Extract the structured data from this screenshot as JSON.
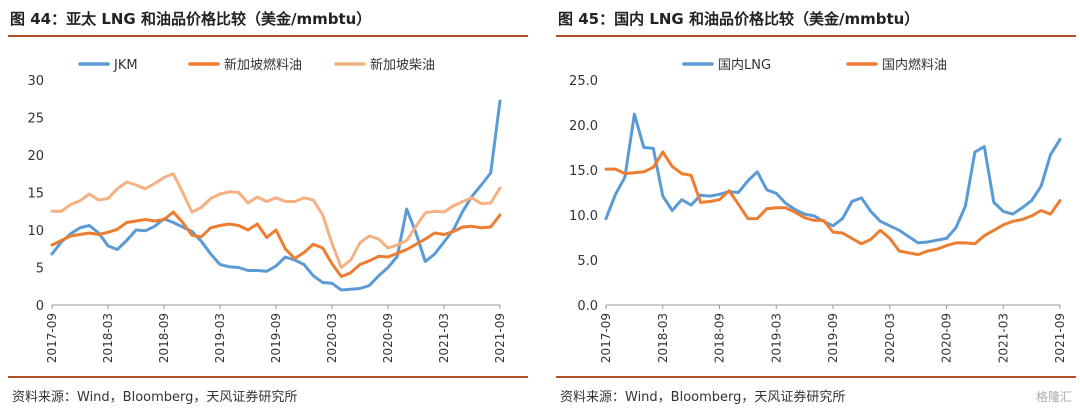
{
  "chart_data": [
    {
      "id": "left",
      "type": "line",
      "title": "图 44：亚太 LNG 和油品价格比较（美金/mmbtu）",
      "source": "资料来源：Wind，Bloomberg，天风证券研究所",
      "xlabel": "",
      "ylabel": "",
      "x_start": "2017-09",
      "n_points": 49,
      "x_ticks": [
        "2017-09",
        "2018-03",
        "2018-09",
        "2019-03",
        "2019-09",
        "2020-03",
        "2020-09",
        "2021-03",
        "2021-09"
      ],
      "y_ticks": [
        "0",
        "5",
        "10",
        "15",
        "20",
        "25",
        "30"
      ],
      "ylim": [
        0,
        30
      ],
      "legend_position": "top",
      "series": [
        {
          "name": "JKM",
          "color": "#5b9bd5",
          "values": [
            6.8,
            8.4,
            9.5,
            10.3,
            10.6,
            9.6,
            7.9,
            7.4,
            8.6,
            10.0,
            9.9,
            10.5,
            11.5,
            11.0,
            10.4,
            9.8,
            8.5,
            6.8,
            5.4,
            5.1,
            5.0,
            4.6,
            4.6,
            4.5,
            5.2,
            6.4,
            6.0,
            5.4,
            3.9,
            3.0,
            2.9,
            2.0,
            2.1,
            2.2,
            2.6,
            3.9,
            5.0,
            6.5,
            12.8,
            9.6,
            5.8,
            6.8,
            8.4,
            10.0,
            12.5,
            14.5,
            16.0,
            17.6,
            27.2
          ]
        },
        {
          "name": "新加坡燃料油",
          "color": "#ed7d31",
          "values": [
            8.0,
            8.6,
            9.2,
            9.4,
            9.6,
            9.4,
            9.7,
            10.1,
            11.0,
            11.2,
            11.4,
            11.2,
            11.4,
            12.4,
            11.0,
            9.3,
            9.1,
            10.3,
            10.6,
            10.8,
            10.6,
            10.0,
            10.8,
            9.0,
            10.0,
            7.5,
            6.2,
            7.0,
            8.1,
            7.6,
            5.5,
            3.8,
            4.3,
            5.4,
            5.9,
            6.5,
            6.4,
            6.9,
            7.4,
            8.1,
            8.8,
            9.6,
            9.4,
            9.8,
            10.4,
            10.5,
            10.3,
            10.4,
            12.0
          ]
        },
        {
          "name": "新加坡柴油",
          "color": "#f4b183",
          "values": [
            12.5,
            12.5,
            13.4,
            13.9,
            14.8,
            14.0,
            14.2,
            15.5,
            16.4,
            16.0,
            15.5,
            16.2,
            17.0,
            17.5,
            15.0,
            12.4,
            13.0,
            14.2,
            14.8,
            15.1,
            15.0,
            13.6,
            14.4,
            13.8,
            14.3,
            13.8,
            13.8,
            14.3,
            14.0,
            12.0,
            8.2,
            5.0,
            6.0,
            8.3,
            9.2,
            8.8,
            7.6,
            8.0,
            8.6,
            10.5,
            12.3,
            12.5,
            12.4,
            13.2,
            13.8,
            14.3,
            13.5,
            13.6,
            15.6
          ]
        }
      ]
    },
    {
      "id": "right",
      "type": "line",
      "title": "图 45：国内 LNG 和油品价格比较（美金/mmbtu）",
      "source": "资料来源：Wind，Bloomberg，天风证券研究所",
      "xlabel": "",
      "ylabel": "",
      "x_start": "2017-09",
      "n_points": 49,
      "x_ticks": [
        "2017-09",
        "2018-03",
        "2018-09",
        "2019-03",
        "2019-09",
        "2020-03",
        "2020-09",
        "2021-03",
        "2021-09"
      ],
      "y_ticks": [
        "0.0",
        "5.0",
        "10.0",
        "15.0",
        "20.0",
        "25.0"
      ],
      "ylim": [
        0,
        25
      ],
      "legend_position": "top",
      "series": [
        {
          "name": "国内LNG",
          "color": "#5b9bd5",
          "values": [
            9.6,
            12.3,
            14.2,
            21.2,
            17.5,
            17.4,
            12.1,
            10.5,
            11.7,
            11.1,
            12.2,
            12.1,
            12.3,
            12.6,
            12.5,
            13.8,
            14.8,
            12.8,
            12.4,
            11.3,
            10.6,
            10.1,
            9.9,
            9.3,
            8.8,
            9.6,
            11.5,
            11.9,
            10.4,
            9.3,
            8.8,
            8.3,
            7.6,
            6.9,
            7.0,
            7.2,
            7.4,
            8.6,
            11.0,
            17.0,
            17.6,
            11.4,
            10.4,
            10.1,
            10.8,
            11.6,
            13.2,
            16.7,
            18.4
          ]
        },
        {
          "name": "国内燃料油",
          "color": "#ed7d31",
          "values": [
            15.1,
            15.1,
            14.6,
            14.7,
            14.8,
            15.3,
            17.0,
            15.4,
            14.6,
            14.4,
            11.4,
            11.5,
            11.7,
            12.7,
            11.2,
            9.6,
            9.6,
            10.7,
            10.8,
            10.8,
            10.3,
            9.7,
            9.4,
            9.4,
            8.1,
            8.0,
            7.4,
            6.8,
            7.3,
            8.3,
            7.4,
            6.0,
            5.8,
            5.6,
            6.0,
            6.2,
            6.6,
            6.9,
            6.9,
            6.8,
            7.7,
            8.3,
            8.9,
            9.3,
            9.5,
            9.9,
            10.5,
            10.1,
            11.6
          ]
        }
      ]
    }
  ],
  "footer": {
    "watermark": "格隆汇"
  }
}
